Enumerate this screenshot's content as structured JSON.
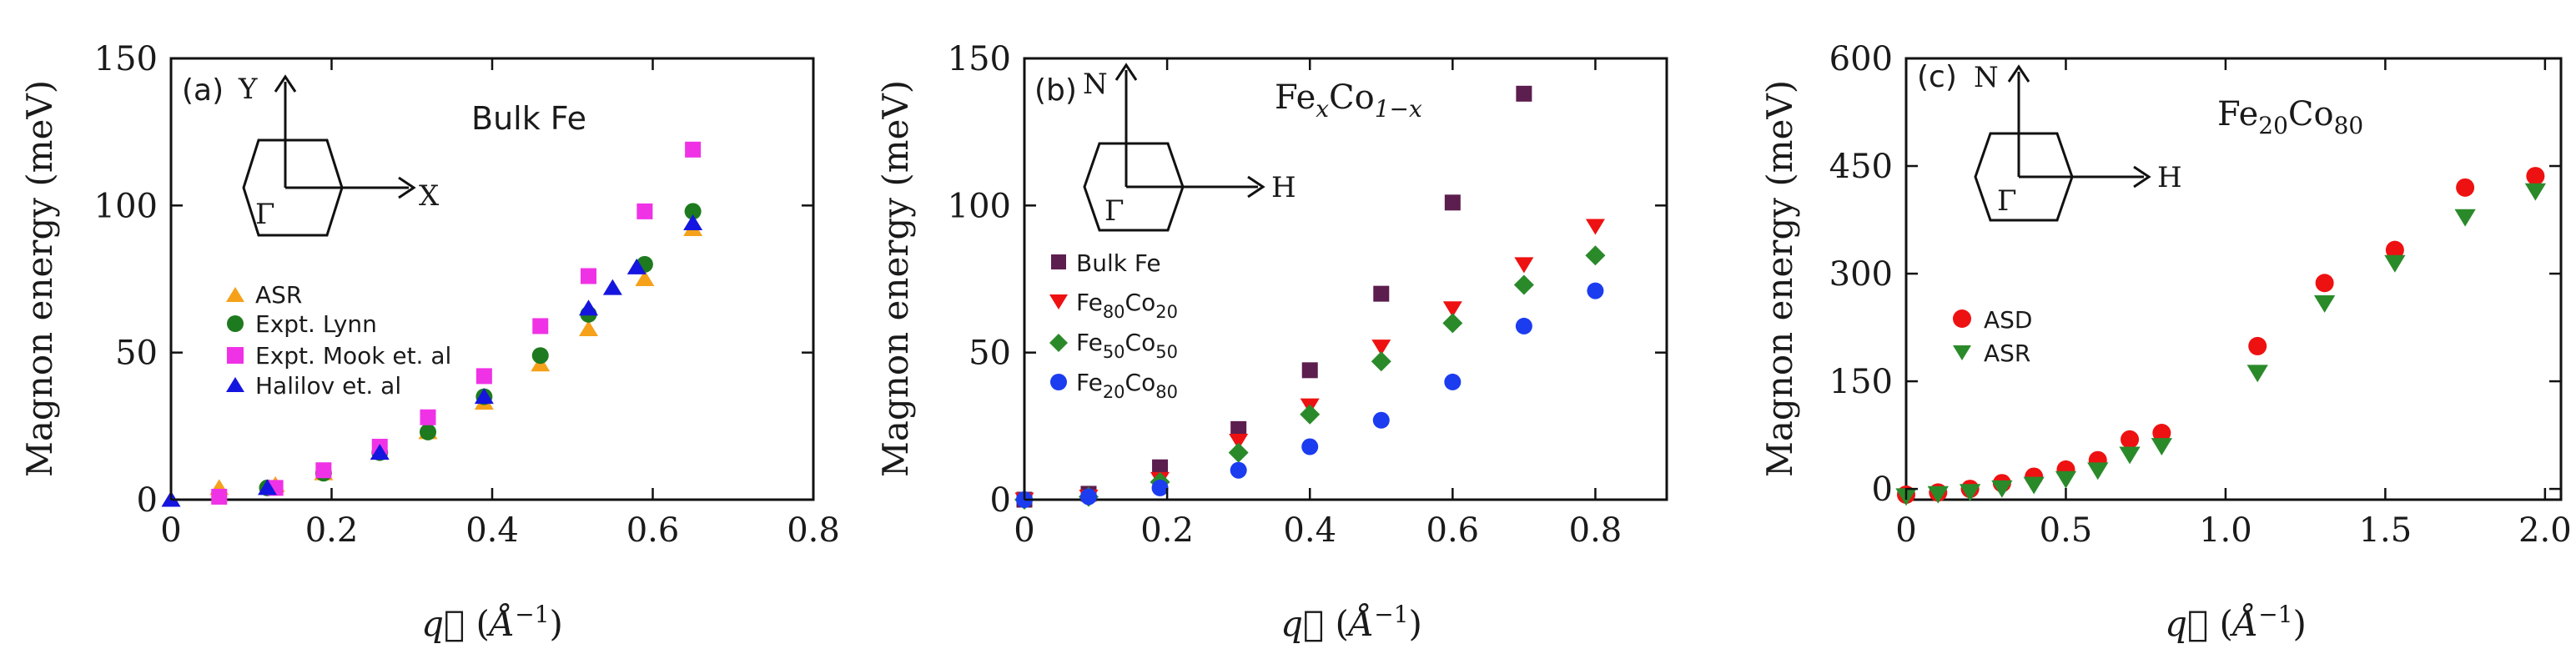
{
  "chart_data": [
    {
      "type": "scatter",
      "panel_label": "(a)",
      "title": "Bulk Fe",
      "ylabel": "Magnon energy (meV)",
      "xlabel": "q (Å⁻¹)",
      "xlim": [
        0,
        0.8
      ],
      "ylim": [
        0,
        150
      ],
      "xticks": [
        0,
        0.2,
        0.4,
        0.6,
        0.8
      ],
      "xtick_labels": [
        "0",
        "0.2",
        "0.4",
        "0.6",
        "0.8"
      ],
      "yticks": [
        0,
        50,
        100,
        150
      ],
      "ytick_labels": [
        "0",
        "50",
        "100",
        "150"
      ],
      "legend": {
        "position": "left-center"
      },
      "inset": {
        "axis_up": "Y",
        "axis_right": "X",
        "center": "Γ"
      },
      "series": [
        {
          "name": "ASR",
          "color": "#f5a11a",
          "marker": "triangle-up",
          "x": [
            0,
            0.06,
            0.13,
            0.19,
            0.26,
            0.32,
            0.39,
            0.46,
            0.52,
            0.59,
            0.65
          ],
          "y": [
            0,
            4,
            5,
            9,
            16,
            23,
            33,
            46,
            58,
            75,
            92
          ]
        },
        {
          "name": "Expt. Lynn",
          "color": "#1e7a1e",
          "marker": "circle",
          "x": [
            0.12,
            0.19,
            0.26,
            0.32,
            0.39,
            0.46,
            0.52,
            0.59,
            0.65
          ],
          "y": [
            4,
            9,
            16,
            23,
            35,
            49,
            63,
            80,
            98
          ]
        },
        {
          "name": "Expt. Mook et. al",
          "color": "#f032e6",
          "marker": "square",
          "x": [
            0.06,
            0.13,
            0.19,
            0.26,
            0.32,
            0.39,
            0.46,
            0.52,
            0.59,
            0.65
          ],
          "y": [
            1,
            4,
            10,
            18,
            28,
            42,
            59,
            76,
            98,
            119
          ]
        },
        {
          "name": "Halilov et. al",
          "color": "#1515e0",
          "marker": "triangle-up",
          "x": [
            0,
            0.12,
            0.26,
            0.39,
            0.52,
            0.55,
            0.58,
            0.65
          ],
          "y": [
            0,
            4,
            16,
            35,
            65,
            72,
            79,
            94
          ]
        }
      ]
    },
    {
      "type": "scatter",
      "panel_label": "(b)",
      "title_main": "Fe",
      "title_sub1": "x",
      "title_mid": "Co",
      "title_sub2": "1−x",
      "ylabel": "Magnon energy (meV)",
      "xlabel": "q (Å⁻¹)",
      "xlim": [
        0,
        0.9
      ],
      "ylim": [
        0,
        150
      ],
      "xticks": [
        0,
        0.2,
        0.4,
        0.6,
        0.8
      ],
      "xtick_labels": [
        "0",
        "0.2",
        "0.4",
        "0.6",
        "0.8"
      ],
      "yticks": [
        0,
        50,
        100,
        150
      ],
      "ytick_labels": [
        "0",
        "50",
        "100",
        "150"
      ],
      "legend": {
        "position": "left-center"
      },
      "inset": {
        "axis_up": "N",
        "axis_right": "H",
        "center": "Γ"
      },
      "series": [
        {
          "name": "Bulk Fe",
          "label_main": "Bulk Fe",
          "label_sub1": "",
          "label_mid": "",
          "label_sub2": "",
          "color": "#5c1e4e",
          "marker": "square",
          "x": [
            0,
            0.09,
            0.19,
            0.3,
            0.4,
            0.5,
            0.6,
            0.7
          ],
          "y": [
            0,
            2,
            11,
            24,
            44,
            70,
            101,
            138
          ]
        },
        {
          "name": "Fe80Co20",
          "label_main": "Fe",
          "label_sub1": "80",
          "label_mid": "Co",
          "label_sub2": "20",
          "color": "#ee1111",
          "marker": "triangle-down",
          "x": [
            0,
            0.09,
            0.19,
            0.3,
            0.4,
            0.5,
            0.6,
            0.7,
            0.8
          ],
          "y": [
            0,
            1,
            7,
            20,
            32,
            52,
            65,
            80,
            93
          ]
        },
        {
          "name": "Fe50Co50",
          "label_main": "Fe",
          "label_sub1": "50",
          "label_mid": "Co",
          "label_sub2": "50",
          "color": "#2a8a2a",
          "marker": "diamond",
          "x": [
            0,
            0.09,
            0.19,
            0.3,
            0.4,
            0.5,
            0.6,
            0.7,
            0.8
          ],
          "y": [
            0,
            1,
            6,
            16,
            29,
            47,
            60,
            73,
            83
          ]
        },
        {
          "name": "Fe20Co80",
          "label_main": "Fe",
          "label_sub1": "20",
          "label_mid": "Co",
          "label_sub2": "80",
          "color": "#1c3cf0",
          "marker": "circle",
          "x": [
            0,
            0.09,
            0.19,
            0.3,
            0.4,
            0.5,
            0.6,
            0.7,
            0.8
          ],
          "y": [
            0,
            1,
            4,
            10,
            18,
            27,
            40,
            59,
            71
          ]
        }
      ]
    },
    {
      "type": "scatter",
      "panel_label": "(c)",
      "title_main": "Fe",
      "title_sub1": "20",
      "title_mid": "Co",
      "title_sub2": "80",
      "ylabel": "Magnon energy (meV)",
      "xlabel": "q (Å⁻¹)",
      "xlim": [
        0,
        2.05
      ],
      "ylim": [
        -15,
        600
      ],
      "xticks": [
        0,
        0.5,
        1.0,
        1.5,
        2.0
      ],
      "xtick_labels": [
        "0",
        "0.5",
        "1.0",
        "1.5",
        "2.0"
      ],
      "yticks": [
        0,
        150,
        300,
        450,
        600
      ],
      "ytick_labels": [
        "0",
        "150",
        "300",
        "450",
        "600"
      ],
      "legend": {
        "position": "left-center"
      },
      "inset": {
        "axis_up": "N",
        "axis_right": "H",
        "center": "Γ"
      },
      "series": [
        {
          "name": "ASD",
          "color": "#ee1111",
          "marker": "circle",
          "x": [
            0,
            0.1,
            0.2,
            0.3,
            0.4,
            0.5,
            0.6,
            0.7,
            0.8,
            1.1,
            1.31,
            1.53,
            1.75,
            1.97
          ],
          "y": [
            -8,
            -5,
            0,
            8,
            17,
            27,
            40,
            69,
            78,
            199,
            287,
            333,
            420,
            436
          ]
        },
        {
          "name": "ASR",
          "color": "#2a8a2a",
          "marker": "triangle-down",
          "x": [
            0,
            0.1,
            0.2,
            0.3,
            0.4,
            0.5,
            0.6,
            0.7,
            0.8,
            1.1,
            1.31,
            1.53,
            1.75,
            1.97
          ],
          "y": [
            -10,
            -7,
            -4,
            1,
            6,
            14,
            26,
            48,
            60,
            162,
            259,
            315,
            379,
            415
          ]
        }
      ]
    }
  ]
}
